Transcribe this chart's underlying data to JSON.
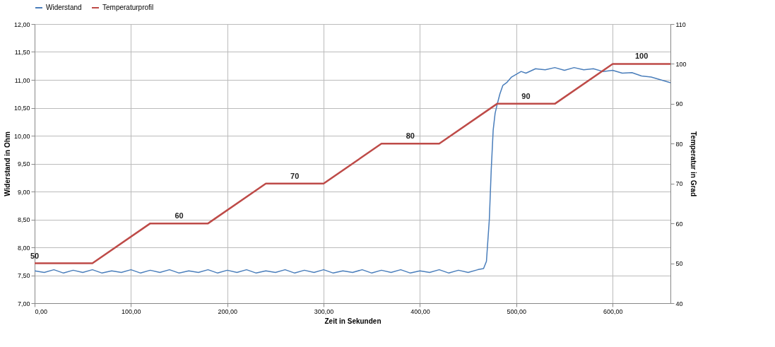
{
  "chart_data": {
    "type": "line",
    "xlabel": "Zeit in Sekunden",
    "ylabel": "Widerstand in Ohm",
    "y2label": "Temperatur in Grad",
    "legend": "top",
    "grid": true,
    "marker": "none",
    "line_style": "solid",
    "xlim": [
      0,
      660
    ],
    "xticks": [
      {
        "value": 0,
        "label": "0,00"
      },
      {
        "value": 100,
        "label": "100,00"
      },
      {
        "value": 200,
        "label": "200,00"
      },
      {
        "value": 300,
        "label": "300,00"
      },
      {
        "value": 400,
        "label": "400,00"
      },
      {
        "value": 500,
        "label": "500,00"
      },
      {
        "value": 600,
        "label": "600,00"
      }
    ],
    "ylim": [
      7,
      12
    ],
    "yticks": [
      {
        "value": 7,
        "label": "7,00"
      },
      {
        "value": 7.5,
        "label": "7,50"
      },
      {
        "value": 8,
        "label": "8,00"
      },
      {
        "value": 8.5,
        "label": "8,50"
      },
      {
        "value": 9,
        "label": "9,00"
      },
      {
        "value": 9.5,
        "label": "9,50"
      },
      {
        "value": 10,
        "label": "10,00"
      },
      {
        "value": 10.5,
        "label": "10,50"
      },
      {
        "value": 11,
        "label": "11,00"
      },
      {
        "value": 11.5,
        "label": "11,50"
      },
      {
        "value": 12,
        "label": "12,00"
      }
    ],
    "y2lim": [
      40,
      110
    ],
    "y2ticks": [
      40,
      50,
      60,
      70,
      80,
      90,
      100,
      110
    ],
    "series": [
      {
        "name": "Widerstand",
        "color": "#4a7ebb",
        "x": [
          0,
          10,
          20,
          30,
          40,
          50,
          60,
          70,
          80,
          90,
          100,
          110,
          120,
          130,
          140,
          150,
          160,
          170,
          180,
          190,
          200,
          210,
          220,
          230,
          240,
          250,
          260,
          270,
          280,
          290,
          300,
          310,
          320,
          330,
          340,
          350,
          360,
          370,
          380,
          390,
          400,
          410,
          420,
          430,
          440,
          450,
          460,
          466,
          469,
          472,
          474,
          476,
          478,
          480,
          483,
          486,
          490,
          495,
          500,
          505,
          510,
          520,
          530,
          540,
          550,
          560,
          570,
          580,
          590,
          600,
          610,
          620,
          630,
          640,
          650,
          660
        ],
        "values": [
          7.58,
          7.55,
          7.6,
          7.54,
          7.59,
          7.55,
          7.6,
          7.54,
          7.58,
          7.55,
          7.6,
          7.54,
          7.59,
          7.55,
          7.6,
          7.54,
          7.58,
          7.55,
          7.6,
          7.54,
          7.59,
          7.55,
          7.6,
          7.54,
          7.58,
          7.55,
          7.6,
          7.54,
          7.59,
          7.55,
          7.6,
          7.54,
          7.58,
          7.55,
          7.6,
          7.54,
          7.59,
          7.55,
          7.6,
          7.54,
          7.58,
          7.55,
          7.6,
          7.54,
          7.59,
          7.55,
          7.6,
          7.62,
          7.75,
          8.5,
          9.4,
          10.1,
          10.4,
          10.55,
          10.75,
          10.9,
          10.95,
          11.05,
          11.1,
          11.15,
          11.12,
          11.2,
          11.18,
          11.22,
          11.17,
          11.22,
          11.18,
          11.2,
          11.15,
          11.17,
          11.12,
          11.13,
          11.07,
          11.05,
          11.0,
          10.95
        ]
      },
      {
        "name": "Temperaturprofil",
        "color": "#be4b48",
        "axis": "y2",
        "x": [
          0,
          30,
          60,
          120,
          150,
          180,
          240,
          270,
          300,
          360,
          390,
          420,
          480,
          510,
          540,
          600,
          630,
          660
        ],
        "values": [
          50,
          50,
          50,
          60,
          60,
          60,
          70,
          70,
          70,
          80,
          80,
          80,
          90,
          90,
          90,
          100,
          100,
          100
        ],
        "value_labels": [
          "50",
          null,
          null,
          null,
          "60",
          null,
          null,
          "70",
          null,
          null,
          "80",
          null,
          null,
          "90",
          null,
          null,
          "100",
          null
        ]
      }
    ]
  }
}
